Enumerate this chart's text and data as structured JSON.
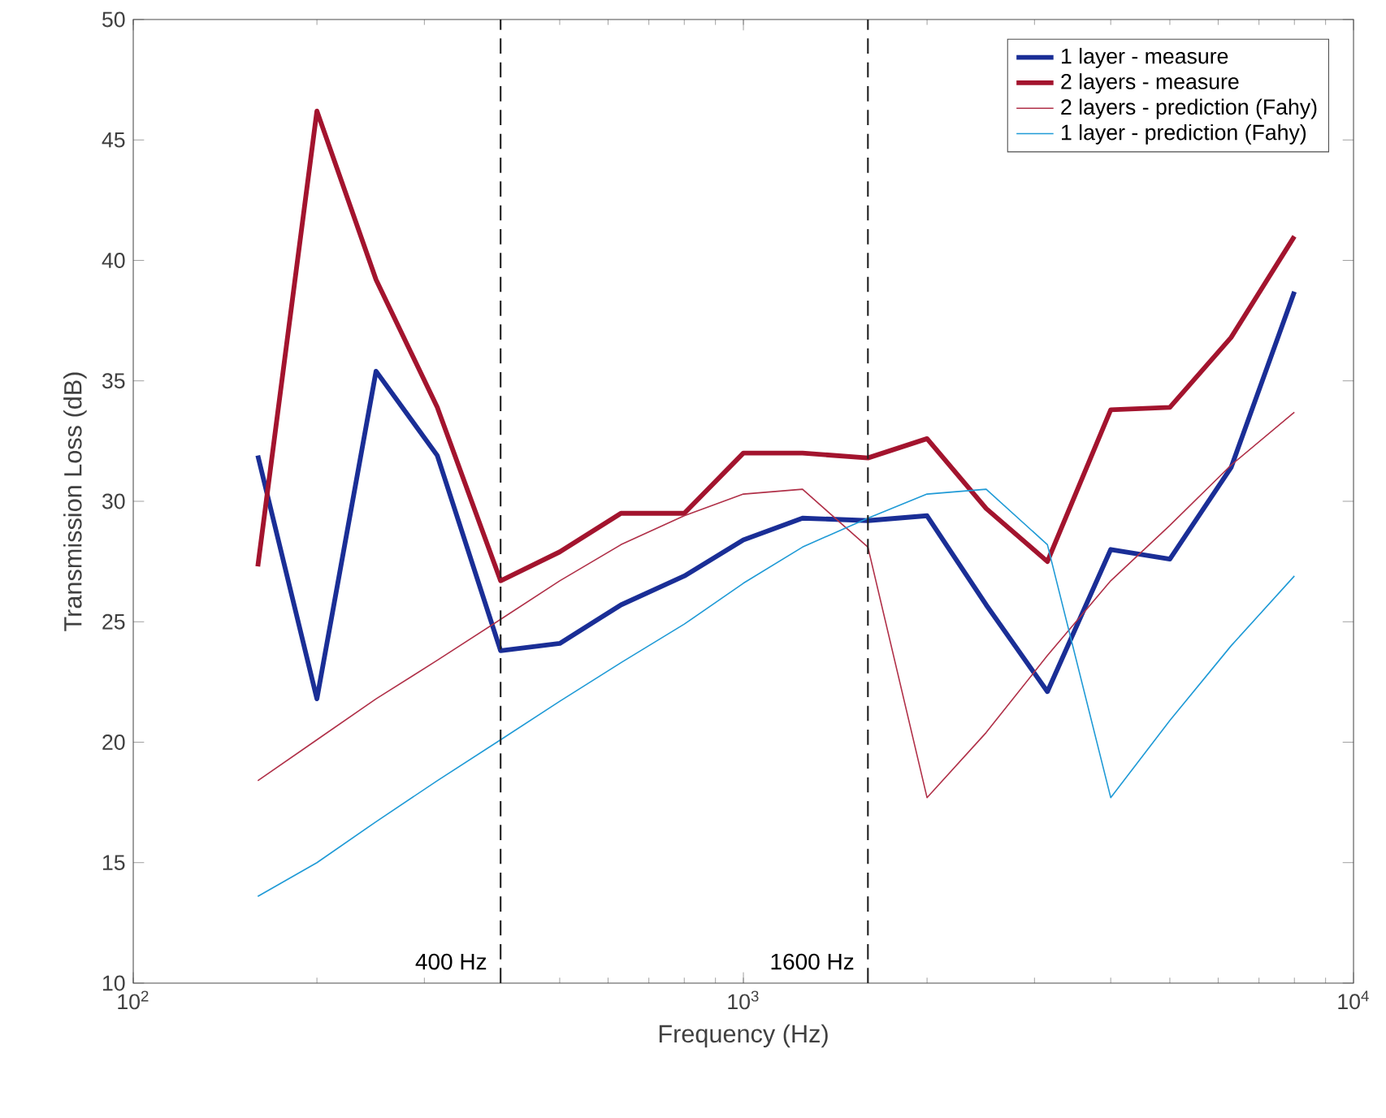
{
  "chart_data": {
    "type": "line",
    "xlabel": "Frequency (Hz)",
    "ylabel": "Transmission Loss (dB)",
    "log": "x",
    "xlim": [
      100,
      10000
    ],
    "ylim": [
      10,
      50
    ],
    "xticks": [
      {
        "value": 100,
        "label": "10$^{2}$"
      },
      {
        "value": 1000,
        "label": "10$^{3}$"
      },
      {
        "value": 10000,
        "label": "10$^{4}$"
      }
    ],
    "yticks": [
      10,
      15,
      20,
      25,
      30,
      35,
      40,
      45,
      50
    ],
    "x": [
      160,
      200,
      250,
      315,
      400,
      500,
      630,
      800,
      1000,
      1250,
      1600,
      2000,
      2500,
      3150,
      4000,
      5000,
      6300,
      8000
    ],
    "series": [
      {
        "name": "1 layer - measure",
        "color": "#1a2e96",
        "values": [
          31.9,
          21.8,
          35.4,
          31.9,
          23.8,
          24.1,
          25.7,
          26.9,
          28.4,
          29.3,
          29.2,
          29.4,
          25.7,
          22.1,
          28.0,
          27.6,
          31.4,
          38.7
        ]
      },
      {
        "name": "2 layers - measure",
        "color": "#a3142e",
        "values": [
          27.3,
          46.2,
          39.2,
          33.9,
          26.7,
          27.9,
          29.5,
          29.5,
          32.0,
          32.0,
          31.8,
          32.6,
          29.7,
          27.5,
          33.8,
          33.9,
          36.8,
          41.0
        ]
      },
      {
        "name": "2 layers - prediction (Fahy)",
        "color": "#b03048",
        "values": [
          18.4,
          20.1,
          21.8,
          23.4,
          25.1,
          26.7,
          28.2,
          29.4,
          30.3,
          30.5,
          28.1,
          17.7,
          20.4,
          23.6,
          26.7,
          29.0,
          31.5,
          33.7
        ]
      },
      {
        "name": "1 layer - prediction (Fahy)",
        "color": "#1f9ad6",
        "values": [
          13.6,
          15.0,
          16.7,
          18.4,
          20.1,
          21.7,
          23.3,
          24.9,
          26.6,
          28.1,
          29.3,
          30.3,
          30.5,
          28.2,
          17.7,
          20.9,
          24.0,
          26.9
        ]
      }
    ],
    "ref_lines": [
      {
        "axis": "x",
        "value": 400,
        "label": "400 Hz",
        "color": "#222222",
        "line_style": "dashed"
      },
      {
        "axis": "x",
        "value": 1600,
        "label": "1600 Hz",
        "color": "#222222",
        "line_style": "dashed"
      }
    ],
    "grid": false,
    "legend": "top right",
    "marker": "none",
    "line_style": "solid"
  }
}
